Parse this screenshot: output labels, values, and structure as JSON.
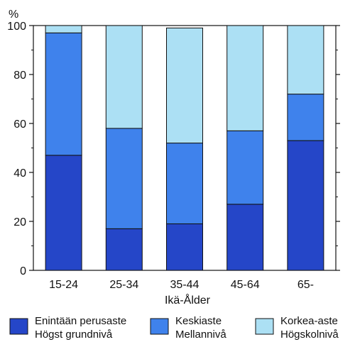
{
  "chart_data": {
    "type": "bar",
    "stacked": true,
    "ylabel": "%",
    "xlabel": "Ikä-Ålder",
    "ylim": [
      0,
      100
    ],
    "yticks": [
      0,
      20,
      40,
      60,
      80,
      100
    ],
    "categories": [
      "15-24",
      "25-34",
      "35-44",
      "45-64",
      "65-"
    ],
    "series": [
      {
        "name": "Enintään perusaste\nHögst grundnivå",
        "name_lines": [
          "Enintään perusaste",
          "Högst grundnivå"
        ],
        "color": "#2546c8",
        "values": [
          47,
          17,
          19,
          27,
          53
        ]
      },
      {
        "name": "Keskiaste\nMellannivå",
        "name_lines": [
          "Keskiaste",
          "Mellannivå"
        ],
        "color": "#3f82ec",
        "values": [
          50,
          41,
          33,
          30,
          19
        ]
      },
      {
        "name": "Korkea-aste\nHögskolnivå",
        "name_lines": [
          "Korkea-aste",
          "Högskolnivå"
        ],
        "color": "#ace0f4",
        "values": [
          3,
          42,
          47,
          43,
          28
        ]
      }
    ],
    "legend_position": "bottom",
    "grid": false
  }
}
